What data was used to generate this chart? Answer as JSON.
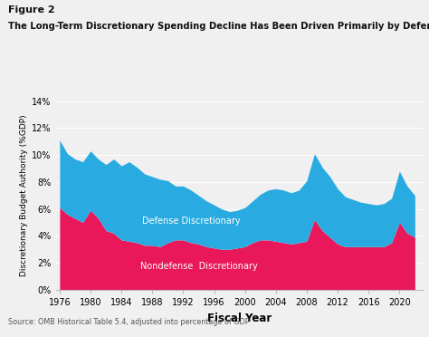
{
  "title": "The Long-Term Discretionary Spending Decline Has Been Driven Primarily by Defense",
  "figure_label": "Figure 2",
  "xlabel": "Fiscal Year",
  "ylabel": "Discretionary Budget Authority (%GDP)",
  "source": "Source: OMB Historical Table 5.4, adjusted into percentage of GDP",
  "defense_color": "#29ABE2",
  "nondefense_color": "#E8185A",
  "background_color": "#f0f0f0",
  "orange_line_color": "#E8A020",
  "figure2_text_color": "#1a1a1a",
  "years": [
    1976,
    1977,
    1978,
    1979,
    1980,
    1981,
    1982,
    1983,
    1984,
    1985,
    1986,
    1987,
    1988,
    1989,
    1990,
    1991,
    1992,
    1993,
    1994,
    1995,
    1996,
    1997,
    1998,
    1999,
    2000,
    2001,
    2002,
    2003,
    2004,
    2005,
    2006,
    2007,
    2008,
    2009,
    2010,
    2011,
    2012,
    2013,
    2014,
    2015,
    2016,
    2017,
    2018,
    2019,
    2020,
    2021,
    2022
  ],
  "nondefense": [
    6.1,
    5.6,
    5.3,
    5.0,
    5.9,
    5.3,
    4.4,
    4.2,
    3.7,
    3.6,
    3.5,
    3.3,
    3.3,
    3.2,
    3.5,
    3.7,
    3.7,
    3.5,
    3.4,
    3.2,
    3.1,
    3.0,
    3.0,
    3.1,
    3.2,
    3.5,
    3.7,
    3.7,
    3.6,
    3.5,
    3.4,
    3.5,
    3.6,
    5.2,
    4.4,
    3.9,
    3.4,
    3.2,
    3.2,
    3.2,
    3.2,
    3.2,
    3.2,
    3.5,
    5.0,
    4.2,
    3.9
  ],
  "defense": [
    5.0,
    4.5,
    4.4,
    4.5,
    4.4,
    4.4,
    4.9,
    5.5,
    5.5,
    5.9,
    5.6,
    5.3,
    5.1,
    5.0,
    4.6,
    4.0,
    4.0,
    3.9,
    3.6,
    3.4,
    3.2,
    3.0,
    2.8,
    2.8,
    2.9,
    3.1,
    3.4,
    3.7,
    3.9,
    3.9,
    3.8,
    3.9,
    4.5,
    4.9,
    4.7,
    4.5,
    4.1,
    3.7,
    3.5,
    3.3,
    3.2,
    3.1,
    3.2,
    3.3,
    3.8,
    3.5,
    3.1
  ],
  "ylim": [
    0,
    14
  ],
  "yticks": [
    0,
    2,
    4,
    6,
    8,
    10,
    12,
    14
  ],
  "ytick_labels": [
    "0%",
    "2%",
    "4%",
    "6%",
    "8%",
    "10%",
    "12%",
    "14%"
  ],
  "xticks": [
    1976,
    1980,
    1984,
    1988,
    1992,
    1996,
    2000,
    2004,
    2008,
    2012,
    2016,
    2020
  ],
  "xlim": [
    1975.5,
    2023
  ]
}
